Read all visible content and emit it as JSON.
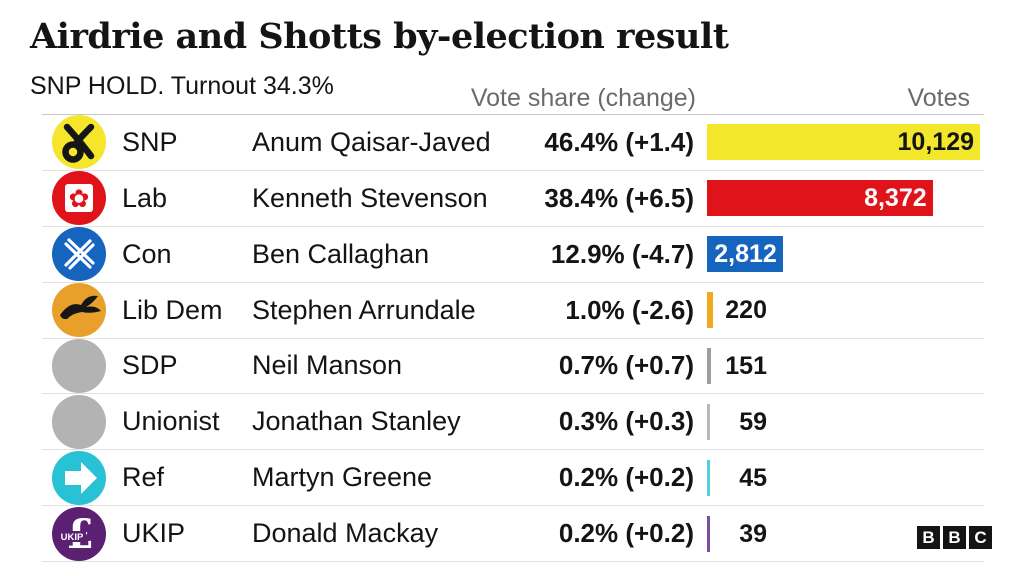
{
  "header": {
    "title": "Airdrie and Shotts by-election result",
    "subtitle": "SNP HOLD. Turnout 34.3%",
    "columns": {
      "vote_share": "Vote share (change)",
      "votes": "Votes"
    }
  },
  "chart_data": {
    "type": "bar",
    "orientation": "horizontal",
    "title": "Airdrie and Shotts by-election result",
    "subtitle": "SNP HOLD. Turnout 34.3%",
    "share_column": "Vote share (change)",
    "value_column": "Votes",
    "max_votes": 10129,
    "rows": [
      {
        "party": "SNP",
        "candidate": "Anum Qaisar-Javed",
        "share": "46.4% (+1.4)",
        "share_pct": 46.4,
        "change_pct": 1.4,
        "votes": 10129,
        "votes_label": "10,129",
        "bar_color": "#F3E72C",
        "icon": "snp",
        "icon_bg": "#F5E62B",
        "label_inside": true,
        "label_color": "#141414"
      },
      {
        "party": "Lab",
        "candidate": "Kenneth Stevenson",
        "share": "38.4% (+6.5)",
        "share_pct": 38.4,
        "change_pct": 6.5,
        "votes": 8372,
        "votes_label": "8,372",
        "bar_color": "#E0121A",
        "icon": "lab",
        "icon_bg": "#E0121A",
        "label_inside": true,
        "label_color": "#FFFFFF"
      },
      {
        "party": "Con",
        "candidate": "Ben Callaghan",
        "share": "12.9% (-4.7)",
        "share_pct": 12.9,
        "change_pct": -4.7,
        "votes": 2812,
        "votes_label": "2,812",
        "bar_color": "#1565BE",
        "icon": "con",
        "icon_bg": "#1565BE",
        "label_inside": true,
        "label_color": "#FFFFFF"
      },
      {
        "party": "Lib Dem",
        "candidate": "Stephen Arrundale",
        "share": "1.0% (-2.6)",
        "share_pct": 1.0,
        "change_pct": -2.6,
        "votes": 220,
        "votes_label": "220",
        "bar_color": "#F0A81E",
        "icon": "libdem",
        "icon_bg": "#E8A02B",
        "label_inside": false,
        "label_color": "#141414"
      },
      {
        "party": "SDP",
        "candidate": "Neil Manson",
        "share": "0.7% (+0.7)",
        "share_pct": 0.7,
        "change_pct": 0.7,
        "votes": 151,
        "votes_label": "151",
        "bar_color": "#9E9E9E",
        "icon": "plain",
        "icon_bg": "#B3B3B3",
        "label_inside": false,
        "label_color": "#141414"
      },
      {
        "party": "Unionist",
        "candidate": "Jonathan Stanley",
        "share": "0.3% (+0.3)",
        "share_pct": 0.3,
        "change_pct": 0.3,
        "votes": 59,
        "votes_label": "59",
        "bar_color": "#B8B8B8",
        "icon": "plain",
        "icon_bg": "#B3B3B3",
        "label_inside": false,
        "label_color": "#141414"
      },
      {
        "party": "Ref",
        "candidate": "Martyn Greene",
        "share": "0.2% (+0.2)",
        "share_pct": 0.2,
        "change_pct": 0.2,
        "votes": 45,
        "votes_label": "45",
        "bar_color": "#55CEDC",
        "icon": "ref",
        "icon_bg": "#29C2D4",
        "label_inside": false,
        "label_color": "#141414"
      },
      {
        "party": "UKIP",
        "candidate": "Donald Mackay",
        "share": "0.2% (+0.2)",
        "share_pct": 0.2,
        "change_pct": 0.2,
        "votes": 39,
        "votes_label": "39",
        "bar_color": "#7B4FA0",
        "icon": "ukip",
        "icon_bg": "#5B2071",
        "label_inside": false,
        "label_color": "#141414"
      }
    ]
  },
  "footer": {
    "logo": [
      "B",
      "B",
      "C"
    ]
  }
}
